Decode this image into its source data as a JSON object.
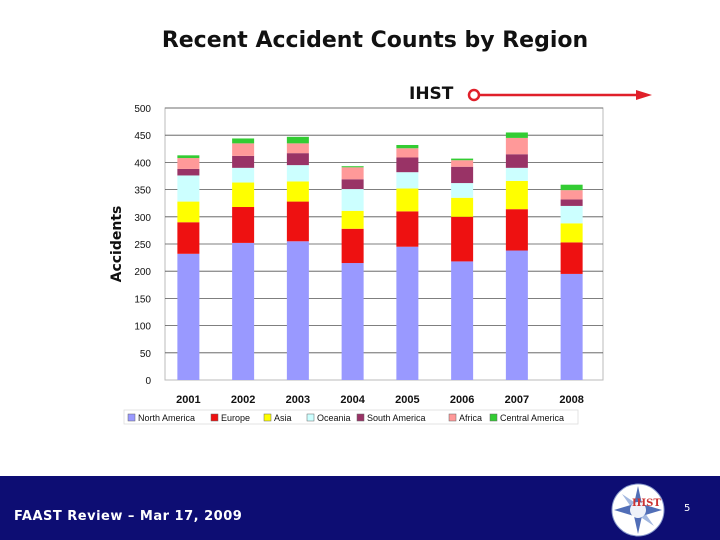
{
  "slide": {
    "ihst_label": "IHST",
    "footer": "FAAST Review – Mar 17, 2009",
    "page_number": "5",
    "logo_text": "IHST"
  },
  "colors": {
    "footer_bg": "#0d0d73",
    "arrow": "#e0202a"
  },
  "chart_data": {
    "type": "bar",
    "stacked": true,
    "title": "Recent Accident Counts by Region",
    "xlabel": "",
    "ylabel": "Accidents",
    "ylim": [
      0,
      500
    ],
    "yticks": [
      0,
      50,
      100,
      150,
      200,
      250,
      300,
      350,
      400,
      450,
      500
    ],
    "grid": true,
    "legend_position": "bottom",
    "categories": [
      "2001",
      "2002",
      "2003",
      "2004",
      "2005",
      "2006",
      "2007",
      "2008"
    ],
    "series": [
      {
        "name": "North America",
        "color": "#9999ff",
        "values": [
          232,
          252,
          255,
          215,
          245,
          218,
          238,
          195
        ]
      },
      {
        "name": "Europe",
        "color": "#ee1111",
        "values": [
          58,
          66,
          73,
          63,
          65,
          82,
          76,
          58
        ]
      },
      {
        "name": "Asia",
        "color": "#ffff00",
        "values": [
          38,
          45,
          37,
          33,
          42,
          35,
          52,
          35
        ]
      },
      {
        "name": "Oceania",
        "color": "#ccffff",
        "values": [
          48,
          27,
          30,
          40,
          30,
          27,
          24,
          32
        ]
      },
      {
        "name": "South America",
        "color": "#993366",
        "values": [
          12,
          22,
          22,
          18,
          27,
          30,
          25,
          12
        ]
      },
      {
        "name": "Africa",
        "color": "#ff9999",
        "values": [
          20,
          23,
          18,
          22,
          17,
          12,
          30,
          17
        ]
      },
      {
        "name": "Central America",
        "color": "#33cc33",
        "values": [
          5,
          9,
          12,
          2,
          6,
          3,
          10,
          10
        ]
      }
    ]
  }
}
